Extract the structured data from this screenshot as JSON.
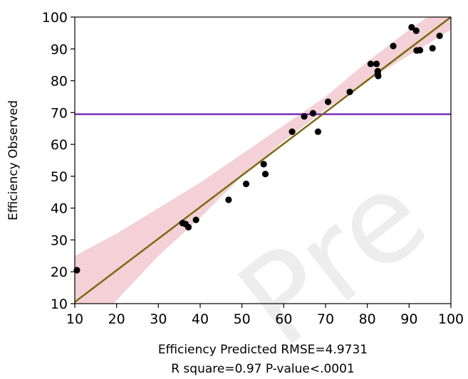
{
  "watermark": "Pre",
  "chart_data": {
    "type": "scatter",
    "xlabel": "Efficiency Predicted RMSE=4.9731",
    "xlabel2": "R square=0.97 P-value<.0001",
    "ylabel": "Efficiency Observed",
    "xlim": [
      10,
      100
    ],
    "ylim": [
      10,
      100
    ],
    "xticks": [
      10,
      20,
      30,
      40,
      50,
      60,
      70,
      80,
      90,
      100
    ],
    "yticks": [
      10,
      20,
      30,
      40,
      50,
      60,
      70,
      80,
      90,
      100
    ],
    "grid": false,
    "legend": "none",
    "points": [
      {
        "x": 10.5,
        "y": 20.5
      },
      {
        "x": 35.8,
        "y": 35.3
      },
      {
        "x": 36.5,
        "y": 35.0
      },
      {
        "x": 37.2,
        "y": 34.0
      },
      {
        "x": 39.0,
        "y": 36.3
      },
      {
        "x": 46.8,
        "y": 42.6
      },
      {
        "x": 51.0,
        "y": 47.6
      },
      {
        "x": 55.2,
        "y": 53.8
      },
      {
        "x": 55.6,
        "y": 50.7
      },
      {
        "x": 62.0,
        "y": 64.0
      },
      {
        "x": 64.9,
        "y": 68.8
      },
      {
        "x": 67.0,
        "y": 69.8
      },
      {
        "x": 68.2,
        "y": 64.0
      },
      {
        "x": 70.6,
        "y": 73.4
      },
      {
        "x": 75.8,
        "y": 76.5
      },
      {
        "x": 80.8,
        "y": 85.3
      },
      {
        "x": 82.2,
        "y": 85.3
      },
      {
        "x": 82.5,
        "y": 83.0
      },
      {
        "x": 82.5,
        "y": 82.2
      },
      {
        "x": 82.6,
        "y": 81.5
      },
      {
        "x": 86.2,
        "y": 90.9
      },
      {
        "x": 90.6,
        "y": 96.8
      },
      {
        "x": 91.7,
        "y": 95.7
      },
      {
        "x": 91.8,
        "y": 89.5
      },
      {
        "x": 92.6,
        "y": 89.6
      },
      {
        "x": 95.6,
        "y": 90.2
      },
      {
        "x": 97.3,
        "y": 94.1
      }
    ],
    "fit_line": {
      "x": [
        10,
        100
      ],
      "y": [
        10.5,
        100
      ],
      "color": "#7a6a12"
    },
    "confidence_band": {
      "x": [
        10,
        20,
        30,
        40,
        50,
        60,
        70,
        80,
        90,
        100
      ],
      "lower": [
        -3,
        11,
        25,
        37,
        50,
        61,
        71,
        80,
        88,
        96
      ],
      "upper": [
        25,
        32,
        40,
        48,
        57,
        66,
        75,
        86,
        96,
        105
      ],
      "color": "#f2c9d0"
    },
    "reference_line": {
      "y": 69.5,
      "color": "#7a2fbe"
    },
    "point_color": "#000000"
  }
}
